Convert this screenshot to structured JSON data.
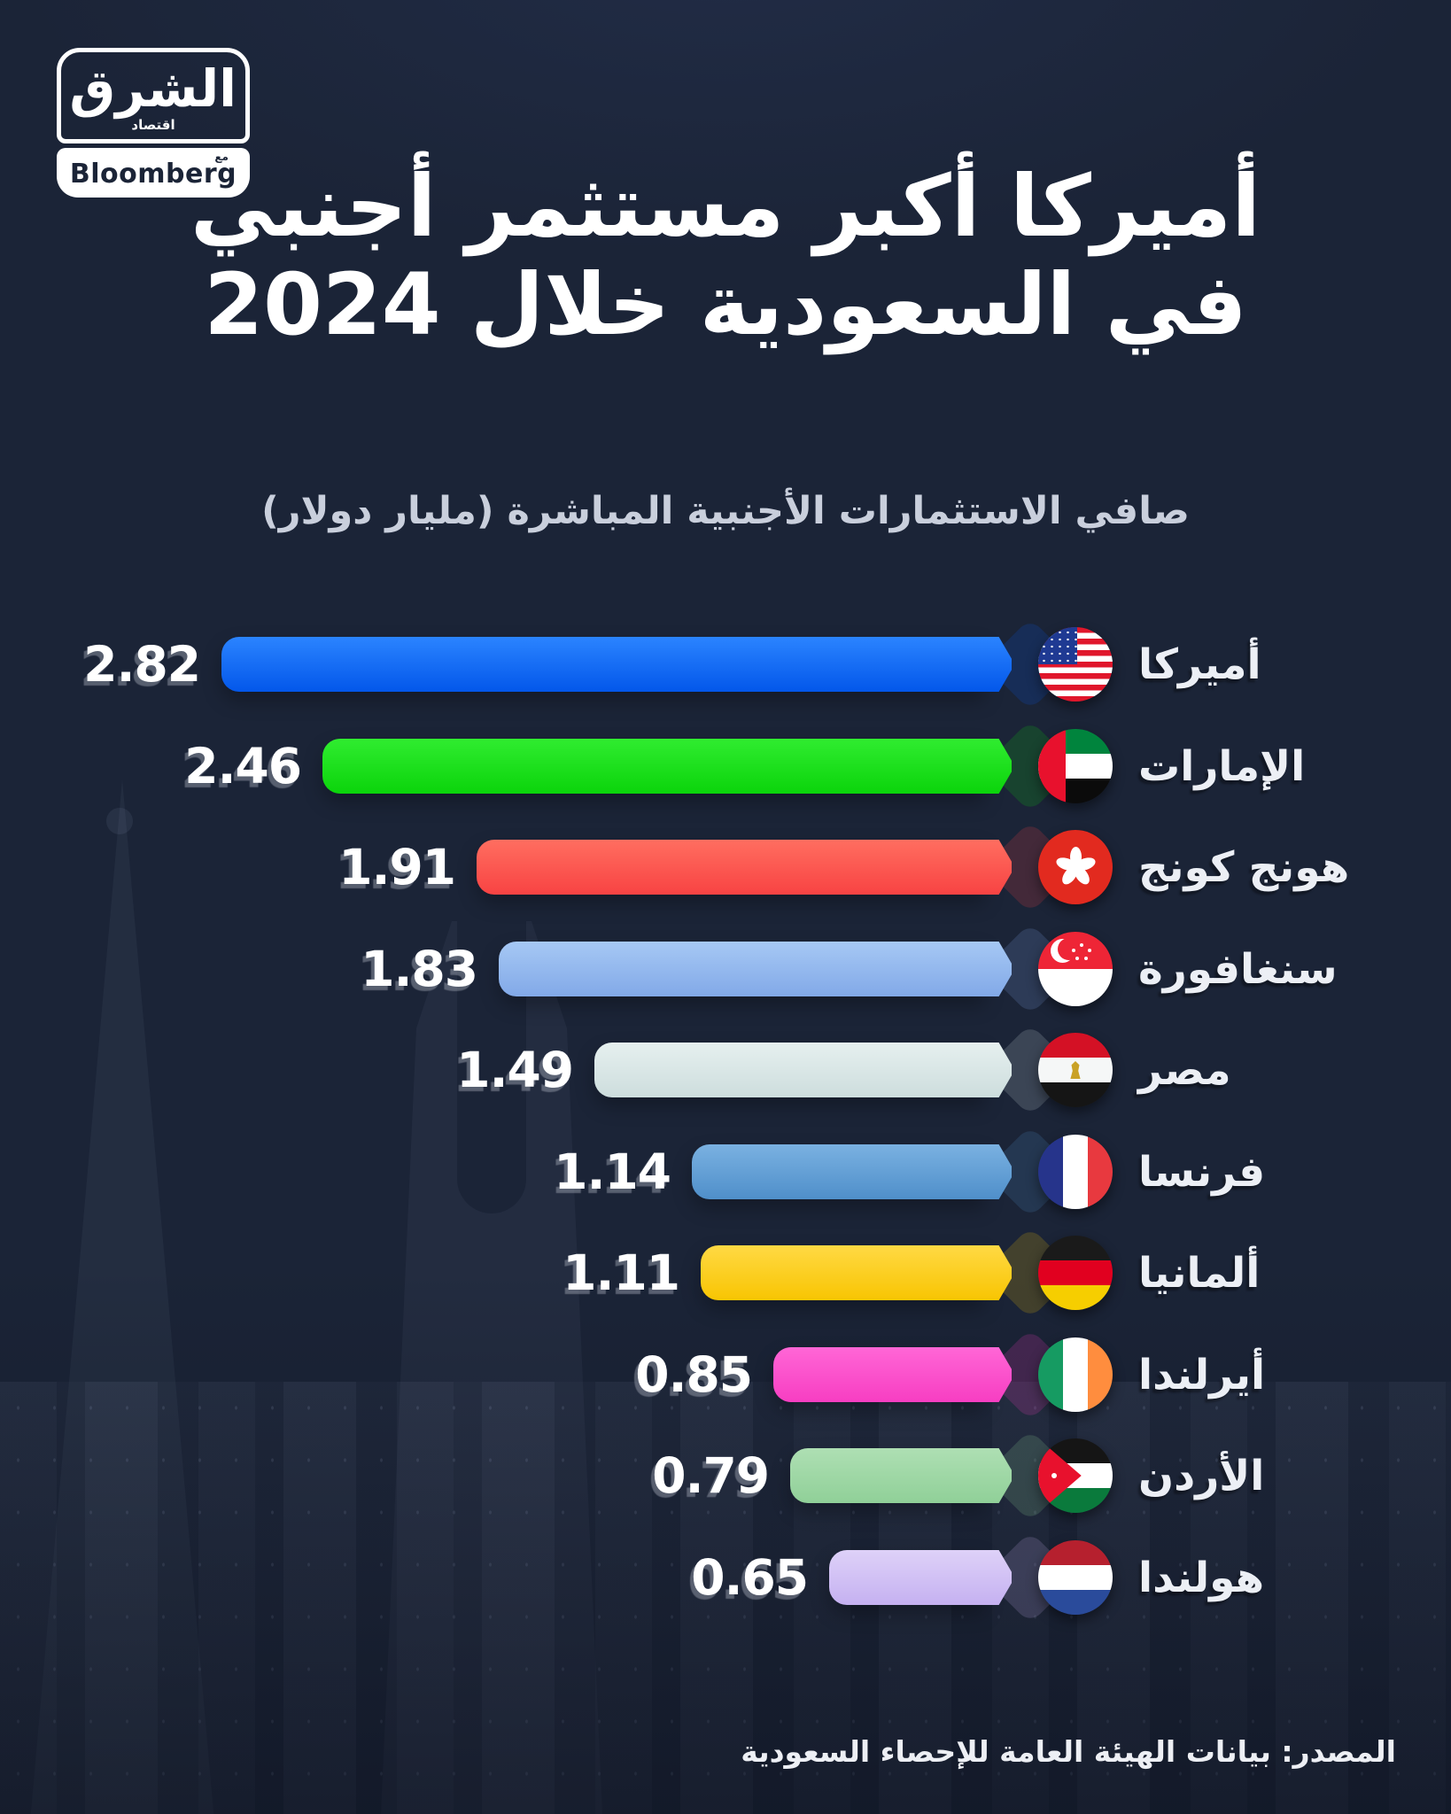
{
  "page": {
    "background": "#1b2437"
  },
  "logo": {
    "brand": "الشرق",
    "brand_sub": "اقتصاد",
    "with_label": "مع",
    "partner": "Bloomberg"
  },
  "title": {
    "line1": "أميركا أكبر مستثمر أجنبي",
    "line2": "في السعودية خلال 2024"
  },
  "subtitle": "صافي الاستثمارات الأجنبية المباشرة (مليار دولار)",
  "source": "المصدر: بيانات الهيئة العامة للإحصاء السعودية",
  "chart_data": {
    "type": "bar",
    "orientation": "horizontal_rtl",
    "title": "أميركا أكبر مستثمر أجنبي في السعودية خلال 2024",
    "subtitle": "صافي الاستثمارات الأجنبية المباشرة (مليار دولار)",
    "unit": "مليار دولار",
    "xlim": [
      0,
      2.82
    ],
    "grid": false,
    "value_labels_shown": true,
    "categories": [
      "أميركا",
      "الإمارات",
      "هونج كونج",
      "سنغافورة",
      "مصر",
      "فرنسا",
      "ألمانيا",
      "أيرلندا",
      "الأردن",
      "هولندا"
    ],
    "values": [
      2.82,
      2.46,
      1.91,
      1.83,
      1.49,
      1.14,
      1.11,
      0.85,
      0.79,
      0.65
    ],
    "flags": [
      "us",
      "ae",
      "hk",
      "sg",
      "eg",
      "fr",
      "de",
      "ie",
      "jo",
      "nl"
    ],
    "bar_colors": [
      {
        "from": "#2b84ff",
        "to": "#0357ea"
      },
      {
        "from": "#30ec30",
        "to": "#0bd40b"
      },
      {
        "from": "#ff6e60",
        "to": "#f84343"
      },
      {
        "from": "#a6c8f4",
        "to": "#82a9e8"
      },
      {
        "from": "#e6f0ef",
        "to": "#cddddd"
      },
      {
        "from": "#7ab1e1",
        "to": "#4f8fca"
      },
      {
        "from": "#ffd944",
        "to": "#f8c502"
      },
      {
        "from": "#ff66d6",
        "to": "#f73ec2"
      },
      {
        "from": "#aedfb3",
        "to": "#90d098"
      },
      {
        "from": "#ded1f8",
        "to": "#c5b1f1"
      }
    ]
  }
}
